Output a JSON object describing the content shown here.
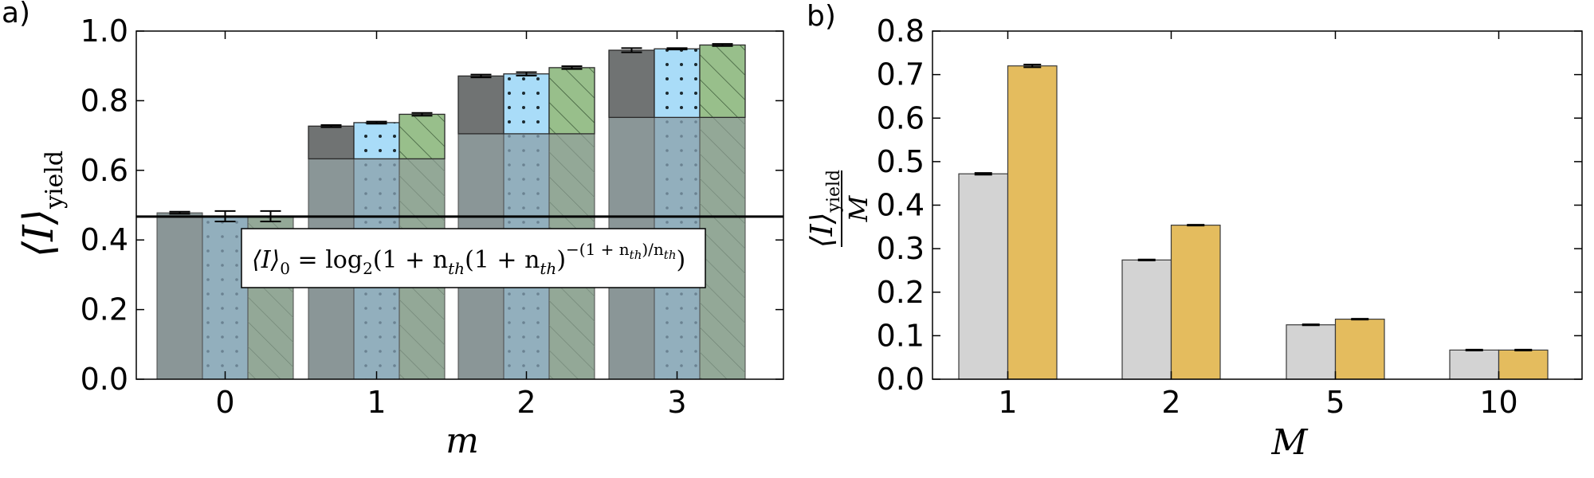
{
  "chart_data": [
    {
      "panel": "a)",
      "type": "bar",
      "subtype": "stacked-grouped",
      "xlabel": "m",
      "ylabel": "⟨I⟩",
      "ylabel_sub": "yield",
      "categories": [
        "0",
        "1",
        "2",
        "3"
      ],
      "ylim": [
        0.0,
        1.0
      ],
      "yticks": [
        "0.0",
        "0.2",
        "0.4",
        "0.6",
        "0.8",
        "1.0"
      ],
      "hline": 0.467,
      "annotation": {
        "lhs": "⟨I⟩",
        "lhs_sub": "0",
        "eq": " = log",
        "eq_sub": "2",
        "body": "(1 + n",
        "body_sub": "th",
        "body2": "(1 + n",
        "body2_sub": "th",
        "body3": ")",
        "exp": "−(1 + n",
        "exp_sub": "th",
        "exp2": ")/n",
        "exp2_sub": "th",
        "close": ")"
      },
      "series": [
        {
          "name": "solid",
          "base": [
            0.478,
            0.633,
            0.705,
            0.752
          ],
          "total": [
            0.478,
            0.727,
            0.871,
            0.945
          ],
          "err": [
            0.003,
            0.003,
            0.004,
            0.006
          ]
        },
        {
          "name": "dotted",
          "base": [
            0.468,
            0.633,
            0.705,
            0.752
          ],
          "total": [
            0.468,
            0.737,
            0.877,
            0.949
          ],
          "err": [
            0.015,
            0.003,
            0.005,
            0.002
          ]
        },
        {
          "name": "hatched",
          "base": [
            0.468,
            0.633,
            0.705,
            0.752
          ],
          "total": [
            0.468,
            0.761,
            0.895,
            0.96
          ],
          "err": [
            0.015,
            0.004,
            0.004,
            0.003
          ]
        }
      ],
      "colors": {
        "base": [
          "#8a9697",
          "#92afbd",
          "#93a897"
        ],
        "top": [
          "#707373",
          "#a9dcf8",
          "#98bf8b"
        ]
      }
    },
    {
      "panel": "b)",
      "type": "bar",
      "xlabel": "M",
      "ylabel_num": "⟨I⟩",
      "ylabel_num_sub": "yield",
      "ylabel_den": "M",
      "categories": [
        "1",
        "2",
        "5",
        "10"
      ],
      "ylim": [
        0.0,
        0.8
      ],
      "yticks": [
        "0.0",
        "0.1",
        "0.2",
        "0.3",
        "0.4",
        "0.5",
        "0.6",
        "0.7",
        "0.8"
      ],
      "series": [
        {
          "name": "gray",
          "values": [
            0.472,
            0.274,
            0.125,
            0.067
          ],
          "err": [
            0.002,
            0.001,
            0.001,
            0.001
          ]
        },
        {
          "name": "gold",
          "values": [
            0.72,
            0.354,
            0.138,
            0.067
          ],
          "err": [
            0.003,
            0.001,
            0.001,
            0.001
          ]
        }
      ],
      "colors": [
        "#d3d3d3",
        "#e4bc5e"
      ]
    }
  ]
}
